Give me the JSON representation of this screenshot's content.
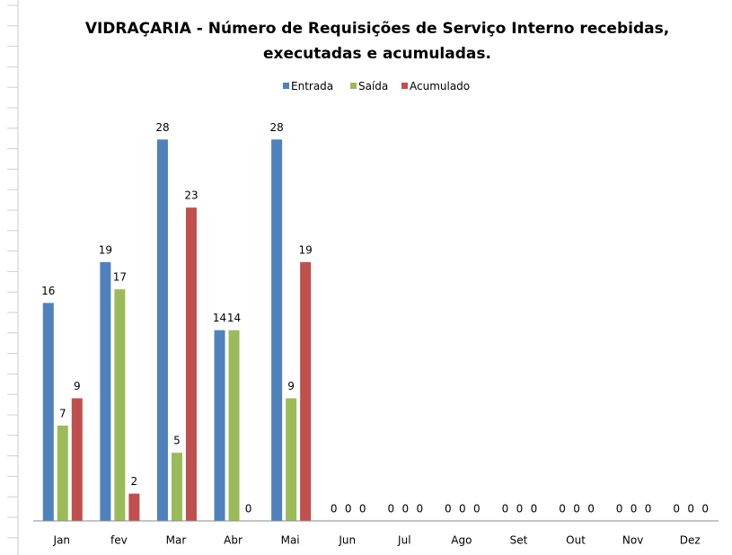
{
  "chart_data": {
    "type": "bar",
    "title": [
      "VIDRAÇARIA - Número de  Requisições de Serviço Interno recebidas,",
      "executadas e acumuladas."
    ],
    "categories": [
      "Jan",
      "fev",
      "Mar",
      "Abr",
      "Mai",
      "Jun",
      "Jul",
      "Ago",
      "Set",
      "Out",
      "Nov",
      "Dez"
    ],
    "series": [
      {
        "name": "Entrada",
        "color": "#4f81bd",
        "values": [
          16,
          19,
          28,
          14,
          28,
          0,
          0,
          0,
          0,
          0,
          0,
          0
        ]
      },
      {
        "name": "Saída",
        "color": "#9bbb59",
        "values": [
          7,
          17,
          5,
          14,
          9,
          0,
          0,
          0,
          0,
          0,
          0,
          0
        ]
      },
      {
        "name": "Acumulado",
        "color": "#c0504d",
        "values": [
          9,
          2,
          23,
          0,
          19,
          0,
          0,
          0,
          0,
          0,
          0,
          0
        ]
      }
    ],
    "ylim": [
      0,
      30
    ],
    "legend": "top"
  }
}
